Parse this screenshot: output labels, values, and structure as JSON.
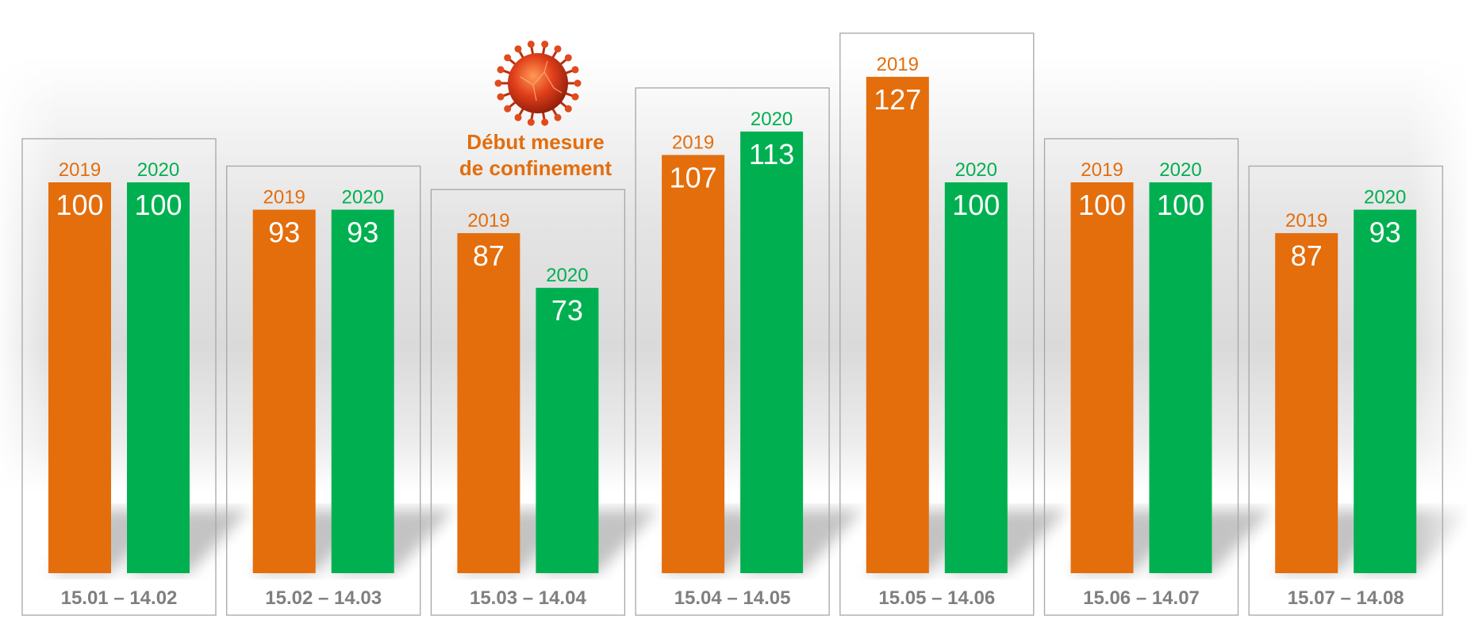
{
  "chart_data": {
    "type": "bar",
    "categories": [
      "15.01 – 14.02",
      "15.02 – 14.03",
      "15.03 – 14.04",
      "15.04 – 14.05",
      "15.05 – 14.06",
      "15.06 – 14.07",
      "15.07 – 14.08"
    ],
    "series": [
      {
        "name": "2019",
        "color": "#e46d0c",
        "values": [
          100,
          93,
          87,
          107,
          127,
          100,
          87
        ]
      },
      {
        "name": "2020",
        "color": "#00b050",
        "values": [
          100,
          93,
          73,
          113,
          100,
          100,
          93
        ]
      }
    ],
    "annotation": {
      "line1": "Début mesure",
      "line2": "de confinement",
      "category": "15.03 – 14.04",
      "icon": "coronavirus-icon"
    },
    "grid": false,
    "legend": "none"
  }
}
